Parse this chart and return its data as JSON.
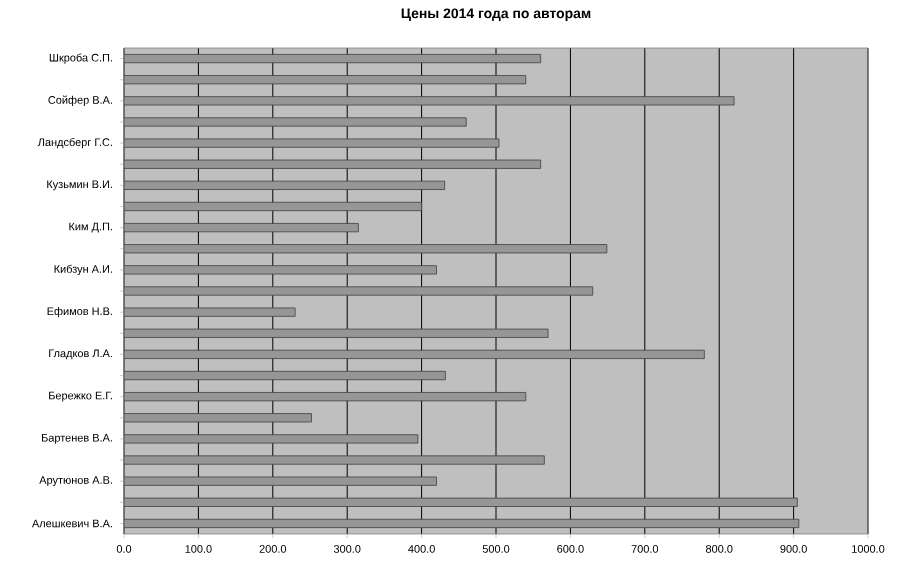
{
  "chart_data": {
    "type": "bar",
    "orientation": "horizontal",
    "title": "Цены 2014 года по авторам",
    "categories": [
      "Шкроба С.П.",
      null,
      "Сойфер В.А.",
      null,
      "Ландсберг Г.С.",
      null,
      "Кузьмин В.И.",
      null,
      "Ким Д.П.",
      null,
      "Кибзун А.И.",
      null,
      "Ефимов Н.В.",
      null,
      "Гладков Л.А.",
      null,
      "Бережко Е.Г.",
      null,
      "Бартенев В.А.",
      null,
      "Арутюнов А.В.",
      null,
      "Алешкевич В.А."
    ],
    "values": [
      560,
      540,
      820,
      460,
      504,
      560,
      431,
      400,
      315,
      649,
      420,
      630,
      230,
      570,
      780,
      432,
      540,
      252,
      395,
      565,
      420,
      905,
      907
    ],
    "color": "#969696",
    "xlim": [
      0,
      1000
    ],
    "xticks": [
      {
        "value": 0,
        "label": "0.0"
      },
      {
        "value": 100,
        "label": "100.0"
      },
      {
        "value": 200,
        "label": "200.0"
      },
      {
        "value": 300,
        "label": "300.0"
      },
      {
        "value": 400,
        "label": "400.0"
      },
      {
        "value": 500,
        "label": "500.0"
      },
      {
        "value": 600,
        "label": "600.0"
      },
      {
        "value": 700,
        "label": "700.0"
      },
      {
        "value": 800,
        "label": "800.0"
      },
      {
        "value": 900,
        "label": "900.0"
      },
      {
        "value": 1000,
        "label": "1000.0"
      }
    ],
    "grid": "x"
  }
}
